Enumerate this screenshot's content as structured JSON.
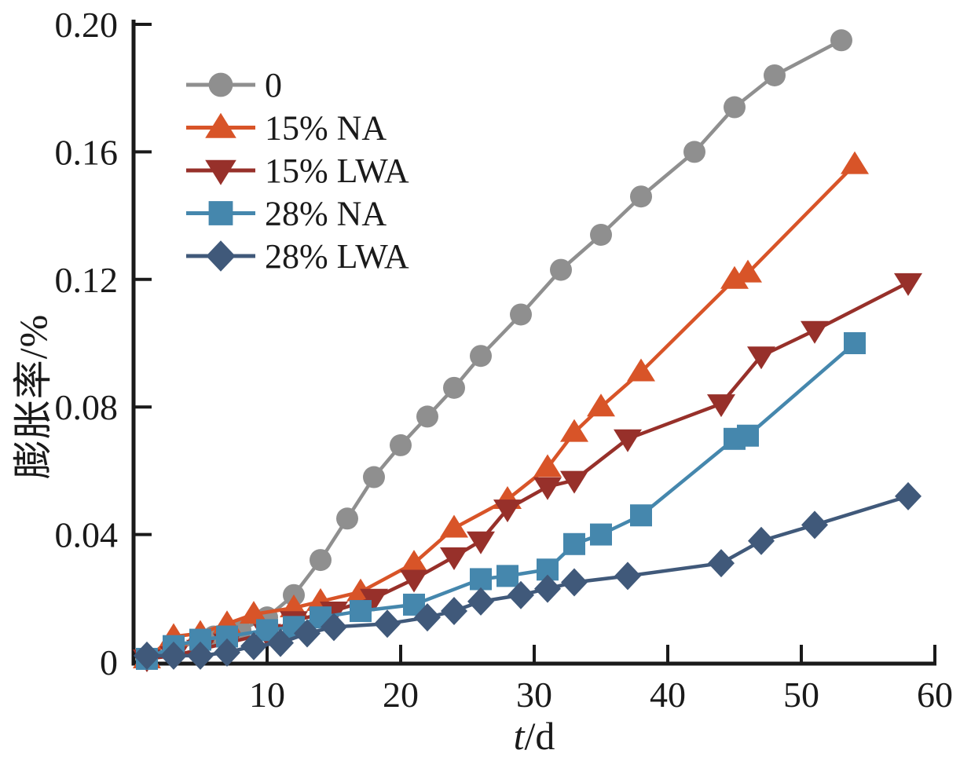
{
  "page": {
    "background": "#ffffff"
  },
  "chart_data": {
    "type": "line",
    "title": "",
    "xlabel": "t/d",
    "xlabel_italic": "t",
    "xlabel_rest": "/d",
    "ylabel": "膨胀率/%",
    "xlim": [
      0,
      60
    ],
    "ylim": [
      0,
      0.2
    ],
    "x_ticks": [
      10,
      20,
      30,
      40,
      50,
      60
    ],
    "x_tick_labels": [
      "10",
      "20",
      "30",
      "40",
      "50",
      "60"
    ],
    "y_ticks": [
      0,
      0.04,
      0.08,
      0.12,
      0.16,
      0.2
    ],
    "y_tick_labels": [
      "0",
      "0.04",
      "0.08",
      "0.12",
      "0.16",
      "0.20"
    ],
    "grid": false,
    "legend_position": "upper left inside",
    "axis_color": "#1a1a1a",
    "series": [
      {
        "name": "0",
        "color": "#8f8f8f",
        "marker": "circle",
        "points": [
          [
            1,
            0.001
          ],
          [
            3,
            0.004
          ],
          [
            6,
            0.008
          ],
          [
            8,
            0.01
          ],
          [
            10,
            0.014
          ],
          [
            12,
            0.021
          ],
          [
            14,
            0.032
          ],
          [
            16,
            0.045
          ],
          [
            18,
            0.058
          ],
          [
            20,
            0.068
          ],
          [
            22,
            0.077
          ],
          [
            24,
            0.086
          ],
          [
            26,
            0.096
          ],
          [
            29,
            0.109
          ],
          [
            32,
            0.123
          ],
          [
            35,
            0.134
          ],
          [
            38,
            0.146
          ],
          [
            42,
            0.16
          ],
          [
            45,
            0.174
          ],
          [
            48,
            0.184
          ],
          [
            53,
            0.195
          ]
        ]
      },
      {
        "name": "15% NA",
        "color": "#d85428",
        "marker": "triangle-up",
        "points": [
          [
            1,
            0.001
          ],
          [
            3,
            0.008
          ],
          [
            5,
            0.009
          ],
          [
            7,
            0.012
          ],
          [
            9,
            0.015
          ],
          [
            12,
            0.017
          ],
          [
            14,
            0.019
          ],
          [
            17,
            0.022
          ],
          [
            21,
            0.031
          ],
          [
            24,
            0.042
          ],
          [
            28,
            0.051
          ],
          [
            31,
            0.061
          ],
          [
            33,
            0.072
          ],
          [
            35,
            0.08
          ],
          [
            38,
            0.091
          ],
          [
            45,
            0.12
          ],
          [
            46,
            0.122
          ],
          [
            54,
            0.156
          ]
        ]
      },
      {
        "name": "15% LWA",
        "color": "#97302a",
        "marker": "triangle-down",
        "points": [
          [
            1,
            0.001
          ],
          [
            3,
            0.002
          ],
          [
            5,
            0.004
          ],
          [
            7,
            0.006
          ],
          [
            10,
            0.009
          ],
          [
            12,
            0.013
          ],
          [
            15,
            0.016
          ],
          [
            18,
            0.02
          ],
          [
            21,
            0.026
          ],
          [
            24,
            0.033
          ],
          [
            26,
            0.038
          ],
          [
            28,
            0.048
          ],
          [
            31,
            0.055
          ],
          [
            33,
            0.057
          ],
          [
            37,
            0.07
          ],
          [
            44,
            0.081
          ],
          [
            47,
            0.096
          ],
          [
            51,
            0.104
          ],
          [
            58,
            0.119
          ]
        ]
      },
      {
        "name": "28% NA",
        "color": "#4587ad",
        "marker": "square",
        "points": [
          [
            1,
            0.001
          ],
          [
            3,
            0.005
          ],
          [
            5,
            0.007
          ],
          [
            7,
            0.008
          ],
          [
            10,
            0.01
          ],
          [
            12,
            0.011
          ],
          [
            14,
            0.014
          ],
          [
            17,
            0.016
          ],
          [
            21,
            0.018
          ],
          [
            26,
            0.026
          ],
          [
            28,
            0.027
          ],
          [
            31,
            0.029
          ],
          [
            33,
            0.037
          ],
          [
            35,
            0.04
          ],
          [
            38,
            0.046
          ],
          [
            45,
            0.07
          ],
          [
            46,
            0.071
          ],
          [
            54,
            0.1
          ]
        ]
      },
      {
        "name": "28% LWA",
        "color": "#40597a",
        "marker": "diamond",
        "points": [
          [
            1,
            0.002
          ],
          [
            3,
            0.002
          ],
          [
            5,
            0.002
          ],
          [
            7,
            0.003
          ],
          [
            9,
            0.005
          ],
          [
            11,
            0.006
          ],
          [
            13,
            0.009
          ],
          [
            15,
            0.011
          ],
          [
            19,
            0.012
          ],
          [
            22,
            0.014
          ],
          [
            24,
            0.016
          ],
          [
            26,
            0.019
          ],
          [
            29,
            0.021
          ],
          [
            31,
            0.023
          ],
          [
            33,
            0.025
          ],
          [
            37,
            0.027
          ],
          [
            44,
            0.031
          ],
          [
            47,
            0.038
          ],
          [
            51,
            0.043
          ],
          [
            58,
            0.052
          ]
        ]
      }
    ]
  }
}
